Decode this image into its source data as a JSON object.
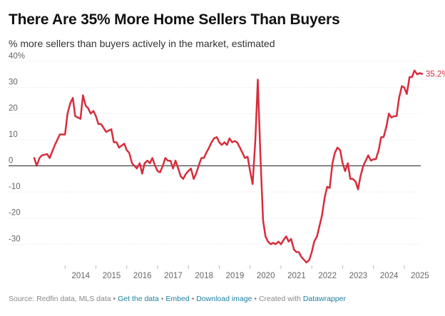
{
  "chart_data": {
    "type": "line",
    "title": "There Are 35% More Home Sellers Than Buyers",
    "subtitle": "% more sellers than buyers actively in the market, estimated",
    "ylim": [
      -37,
      40
    ],
    "y_ticks": [
      40,
      30,
      20,
      10,
      0,
      -10,
      -20,
      -30
    ],
    "y_tick_labels": [
      "40%",
      "30",
      "20",
      "10",
      "0",
      "-10",
      "-20",
      "-30"
    ],
    "x_ticks": [
      2014,
      2015,
      2016,
      2017,
      2018,
      2019,
      2020,
      2021,
      2022,
      2023,
      2024,
      2025
    ],
    "x_tick_labels": [
      "2014",
      "2015",
      "2016",
      "2017",
      "2018",
      "2019",
      "2020",
      "2021",
      "2022",
      "2023",
      "2024",
      "2025"
    ],
    "series": [
      {
        "color": "#d62d3c",
        "end_label": "35.2%",
        "points": [
          [
            2013.0,
            3
          ],
          [
            2013.08,
            0
          ],
          [
            2013.17,
            3
          ],
          [
            2013.25,
            4
          ],
          [
            2013.42,
            4.5
          ],
          [
            2013.5,
            3
          ],
          [
            2013.67,
            8
          ],
          [
            2013.83,
            12
          ],
          [
            2014.0,
            12
          ],
          [
            2014.08,
            20
          ],
          [
            2014.17,
            24
          ],
          [
            2014.25,
            26
          ],
          [
            2014.33,
            19
          ],
          [
            2014.5,
            18
          ],
          [
            2014.58,
            27
          ],
          [
            2014.67,
            23
          ],
          [
            2014.75,
            22
          ],
          [
            2014.83,
            20
          ],
          [
            2014.92,
            21
          ],
          [
            2015.0,
            19
          ],
          [
            2015.08,
            16
          ],
          [
            2015.17,
            16
          ],
          [
            2015.33,
            13
          ],
          [
            2015.5,
            14
          ],
          [
            2015.58,
            9
          ],
          [
            2015.67,
            9
          ],
          [
            2015.75,
            7
          ],
          [
            2015.92,
            8.5
          ],
          [
            2016.0,
            6
          ],
          [
            2016.08,
            5
          ],
          [
            2016.17,
            1
          ],
          [
            2016.25,
            0
          ],
          [
            2016.33,
            -1
          ],
          [
            2016.42,
            1
          ],
          [
            2016.5,
            -3
          ],
          [
            2016.58,
            1
          ],
          [
            2016.67,
            2
          ],
          [
            2016.75,
            1
          ],
          [
            2016.83,
            3
          ],
          [
            2016.92,
            0
          ],
          [
            2017.0,
            -2
          ],
          [
            2017.08,
            -2.5
          ],
          [
            2017.17,
            0
          ],
          [
            2017.25,
            3
          ],
          [
            2017.33,
            2
          ],
          [
            2017.42,
            2
          ],
          [
            2017.5,
            -1
          ],
          [
            2017.58,
            2
          ],
          [
            2017.67,
            -1
          ],
          [
            2017.75,
            -4
          ],
          [
            2017.83,
            -5
          ],
          [
            2017.92,
            -3
          ],
          [
            2018.0,
            -2
          ],
          [
            2018.08,
            -1
          ],
          [
            2018.17,
            -5
          ],
          [
            2018.25,
            -3
          ],
          [
            2018.33,
            0
          ],
          [
            2018.42,
            3
          ],
          [
            2018.5,
            3
          ],
          [
            2018.58,
            5
          ],
          [
            2018.67,
            7
          ],
          [
            2018.75,
            9
          ],
          [
            2018.83,
            10.5
          ],
          [
            2018.92,
            11
          ],
          [
            2019.0,
            9
          ],
          [
            2019.08,
            8
          ],
          [
            2019.17,
            9
          ],
          [
            2019.25,
            8
          ],
          [
            2019.33,
            10.5
          ],
          [
            2019.42,
            9
          ],
          [
            2019.5,
            9.5
          ],
          [
            2019.58,
            9
          ],
          [
            2019.67,
            7
          ],
          [
            2019.75,
            5
          ],
          [
            2019.83,
            3
          ],
          [
            2019.92,
            3.5
          ],
          [
            2020.0,
            -2
          ],
          [
            2020.08,
            -7
          ],
          [
            2020.17,
            10
          ],
          [
            2020.25,
            33
          ],
          [
            2020.33,
            5
          ],
          [
            2020.42,
            -21
          ],
          [
            2020.5,
            -27
          ],
          [
            2020.58,
            -29
          ],
          [
            2020.67,
            -30
          ],
          [
            2020.75,
            -29.5
          ],
          [
            2020.83,
            -30
          ],
          [
            2020.92,
            -29
          ],
          [
            2021.0,
            -30
          ],
          [
            2021.08,
            -28.5
          ],
          [
            2021.17,
            -27
          ],
          [
            2021.25,
            -29
          ],
          [
            2021.33,
            -28
          ],
          [
            2021.42,
            -32
          ],
          [
            2021.5,
            -33
          ],
          [
            2021.58,
            -33
          ],
          [
            2021.67,
            -35
          ],
          [
            2021.75,
            -36
          ],
          [
            2021.83,
            -37
          ],
          [
            2021.92,
            -36
          ],
          [
            2022.0,
            -33
          ],
          [
            2022.08,
            -29
          ],
          [
            2022.17,
            -27
          ],
          [
            2022.25,
            -23
          ],
          [
            2022.33,
            -19
          ],
          [
            2022.42,
            -12
          ],
          [
            2022.5,
            -8
          ],
          [
            2022.58,
            -8.5
          ],
          [
            2022.67,
            1
          ],
          [
            2022.75,
            5
          ],
          [
            2022.83,
            7
          ],
          [
            2022.92,
            6
          ],
          [
            2023.0,
            1
          ],
          [
            2023.08,
            -2
          ],
          [
            2023.17,
            1
          ],
          [
            2023.25,
            -5
          ],
          [
            2023.33,
            -5
          ],
          [
            2023.42,
            -6
          ],
          [
            2023.5,
            -9
          ],
          [
            2023.58,
            -4
          ],
          [
            2023.67,
            0
          ],
          [
            2023.75,
            2
          ],
          [
            2023.83,
            4
          ],
          [
            2023.92,
            2
          ],
          [
            2024.0,
            2.5
          ],
          [
            2024.08,
            2.5
          ],
          [
            2024.17,
            6
          ],
          [
            2024.25,
            11
          ],
          [
            2024.33,
            11
          ],
          [
            2024.42,
            15
          ],
          [
            2024.5,
            20
          ],
          [
            2024.58,
            18.5
          ],
          [
            2024.67,
            19
          ],
          [
            2024.75,
            19
          ],
          [
            2024.83,
            26
          ],
          [
            2024.92,
            30.5
          ],
          [
            2025.0,
            30
          ],
          [
            2025.08,
            27.5
          ],
          [
            2025.17,
            34
          ],
          [
            2025.25,
            34
          ],
          [
            2025.33,
            36.5
          ],
          [
            2025.42,
            35
          ],
          [
            2025.5,
            35.5
          ],
          [
            2025.58,
            35.2
          ]
        ]
      }
    ]
  },
  "footer": {
    "source": "Source: Redfin data, MLS data",
    "separator": " • ",
    "get_data": "Get the data",
    "embed": "Embed",
    "download": "Download image",
    "created_with": "Created with",
    "datawrapper": "Datawrapper"
  }
}
